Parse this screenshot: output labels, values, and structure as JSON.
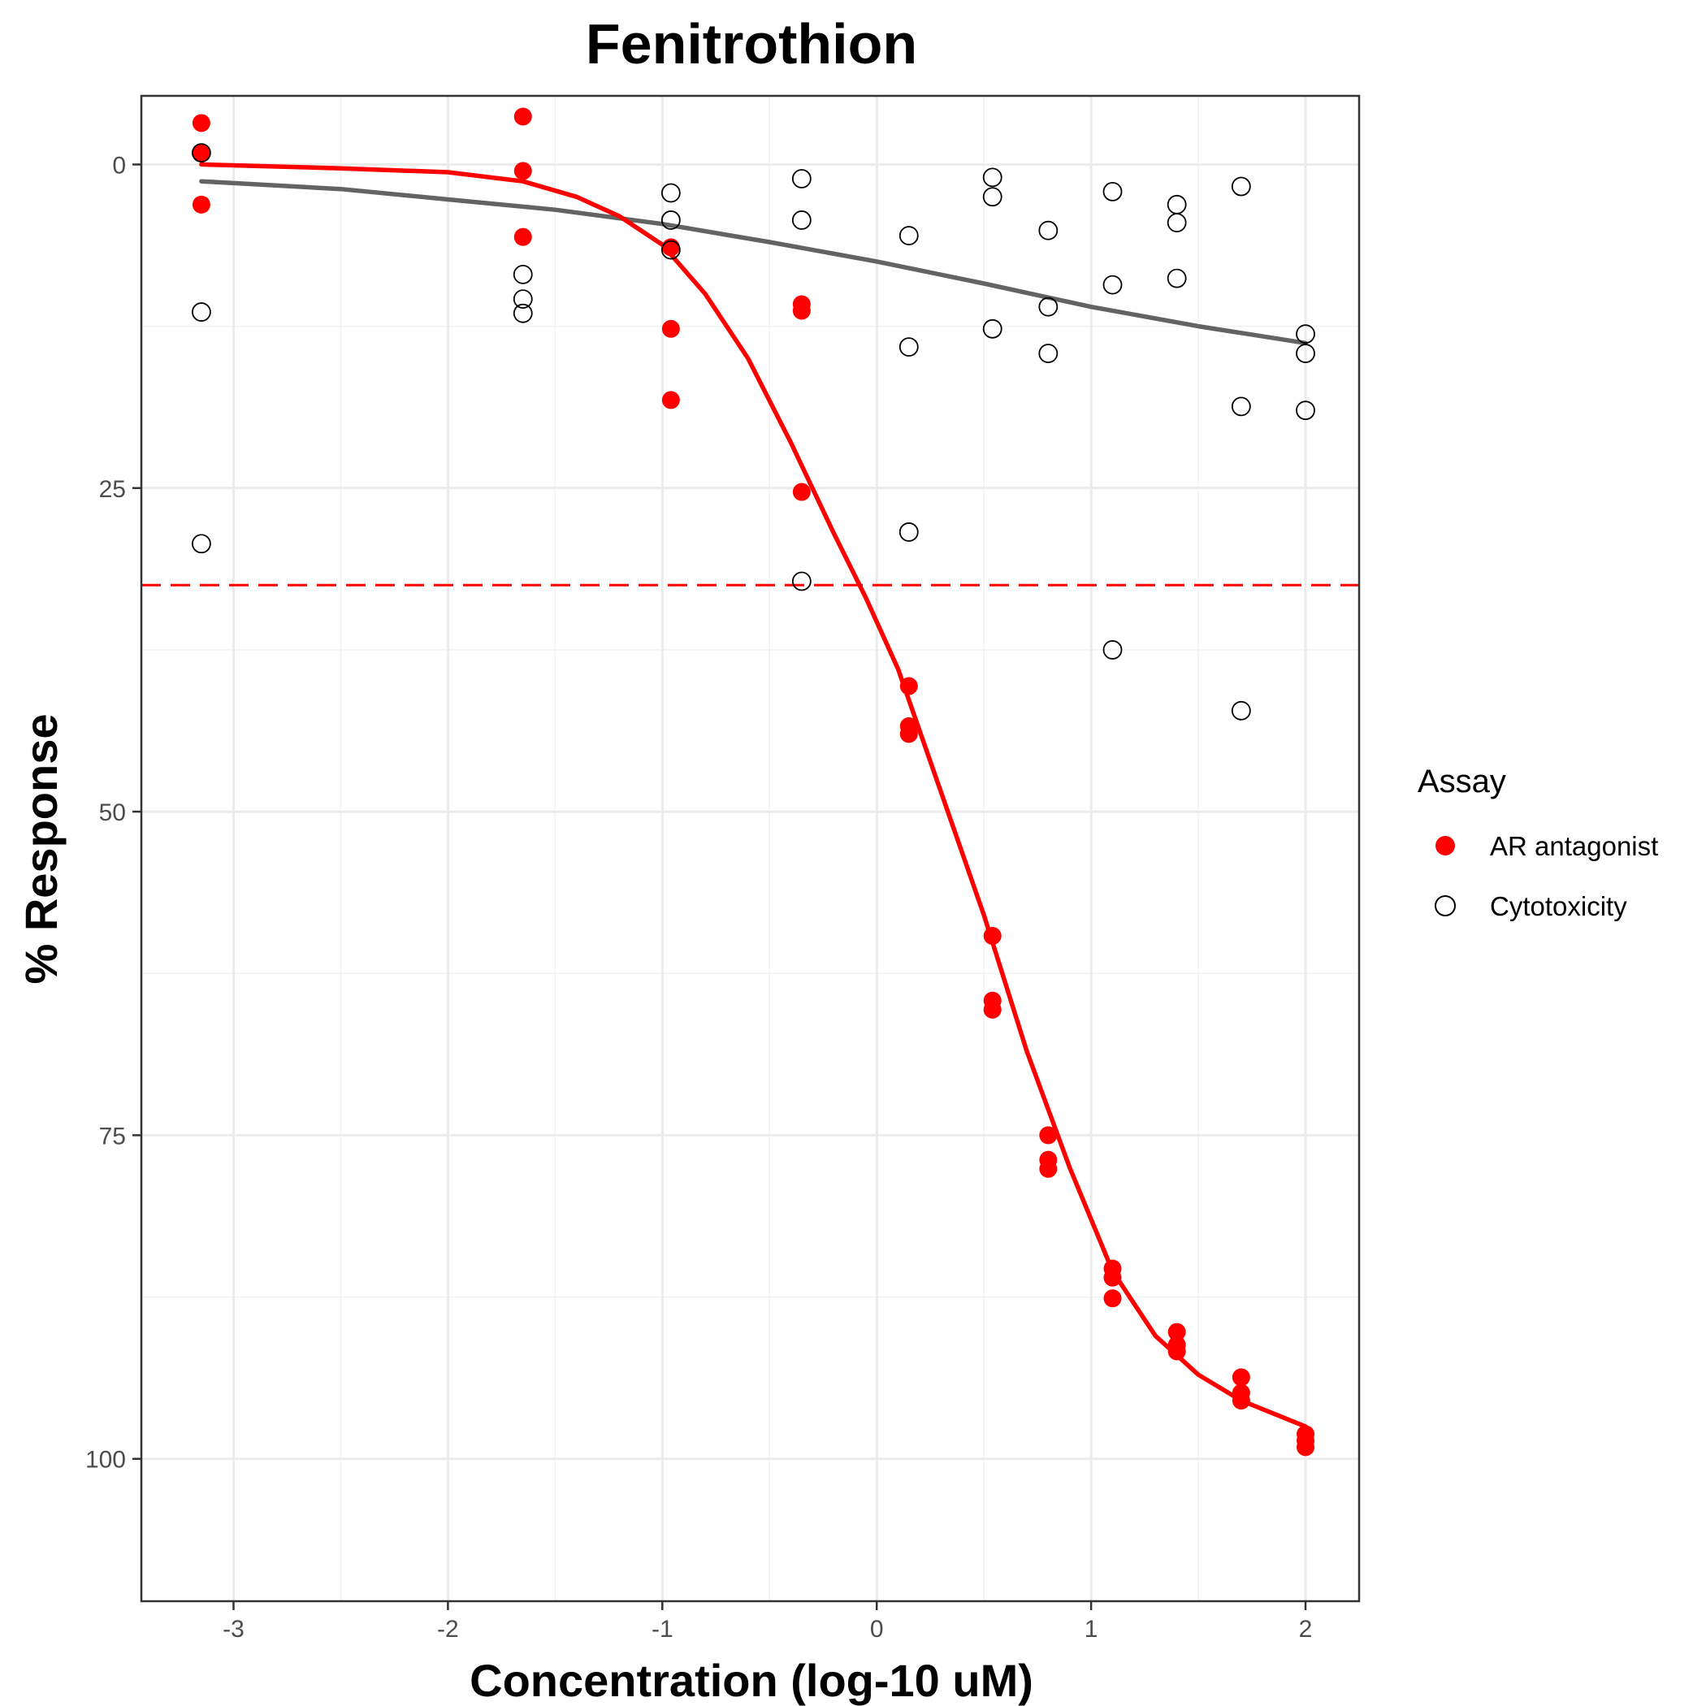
{
  "chart_data": {
    "type": "scatter",
    "title": "Fenitrothion",
    "xlabel": "Concentration (log-10 uM)",
    "ylabel": "% Response",
    "xlim": [
      -3.43,
      2.25
    ],
    "ylim": [
      111,
      -5.3
    ],
    "y_reversed": true,
    "x_ticks": [
      -3,
      -2,
      -1,
      0,
      1,
      2
    ],
    "y_ticks": [
      0,
      25,
      50,
      75,
      100
    ],
    "grid": true,
    "threshold_line": {
      "y": 32.5,
      "color": "#ff0000",
      "style": "dashed"
    },
    "legend": {
      "title": "Assay",
      "position": "right"
    },
    "series": [
      {
        "name": "AR antagonist",
        "color": "#ff0000",
        "marker": "filled-circle",
        "points": [
          [
            -3.15,
            -3.2
          ],
          [
            -3.15,
            -0.9
          ],
          [
            -3.15,
            3.1
          ],
          [
            -1.65,
            -3.7
          ],
          [
            -1.65,
            0.5
          ],
          [
            -1.65,
            5.6
          ],
          [
            -0.96,
            6.4
          ],
          [
            -0.96,
            12.7
          ],
          [
            -0.96,
            18.2
          ],
          [
            -0.35,
            10.8
          ],
          [
            -0.35,
            11.3
          ],
          [
            -0.35,
            25.3
          ],
          [
            0.15,
            40.3
          ],
          [
            0.15,
            43.4
          ],
          [
            0.15,
            44.0
          ],
          [
            0.54,
            59.6
          ],
          [
            0.54,
            64.6
          ],
          [
            0.54,
            65.3
          ],
          [
            0.8,
            75.0
          ],
          [
            0.8,
            76.9
          ],
          [
            0.8,
            77.6
          ],
          [
            1.1,
            85.3
          ],
          [
            1.1,
            86.0
          ],
          [
            1.1,
            87.6
          ],
          [
            1.4,
            90.2
          ],
          [
            1.4,
            91.2
          ],
          [
            1.4,
            91.7
          ],
          [
            1.7,
            93.7
          ],
          [
            1.7,
            94.9
          ],
          [
            1.7,
            95.5
          ],
          [
            2.0,
            98.1
          ],
          [
            2.0,
            98.6
          ],
          [
            2.0,
            99.1
          ]
        ],
        "fit": [
          [
            -3.15,
            0.0
          ],
          [
            -2.5,
            0.3
          ],
          [
            -2.0,
            0.6
          ],
          [
            -1.65,
            1.3
          ],
          [
            -1.4,
            2.5
          ],
          [
            -1.2,
            4.0
          ],
          [
            -1.0,
            6.2
          ],
          [
            -0.8,
            10.0
          ],
          [
            -0.6,
            15.0
          ],
          [
            -0.4,
            21.5
          ],
          [
            -0.2,
            28.5
          ],
          [
            -0.05,
            33.5
          ],
          [
            0.1,
            39.0
          ],
          [
            0.3,
            48.5
          ],
          [
            0.5,
            58.0
          ],
          [
            0.7,
            68.5
          ],
          [
            0.9,
            77.5
          ],
          [
            1.1,
            85.5
          ],
          [
            1.3,
            90.5
          ],
          [
            1.5,
            93.5
          ],
          [
            1.7,
            95.5
          ],
          [
            2.0,
            97.5
          ]
        ]
      },
      {
        "name": "Cytotoxicity",
        "color": "#000000",
        "marker": "open-circle",
        "points": [
          [
            -3.15,
            -0.9
          ],
          [
            -3.15,
            11.4
          ],
          [
            -3.15,
            29.3
          ],
          [
            -1.65,
            8.5
          ],
          [
            -1.65,
            10.4
          ],
          [
            -1.65,
            11.5
          ],
          [
            -0.96,
            2.2
          ],
          [
            -0.96,
            4.3
          ],
          [
            -0.96,
            6.6
          ],
          [
            -0.35,
            1.1
          ],
          [
            -0.35,
            4.3
          ],
          [
            -0.35,
            32.2
          ],
          [
            0.15,
            5.5
          ],
          [
            0.15,
            14.1
          ],
          [
            0.15,
            28.4
          ],
          [
            0.54,
            1.0
          ],
          [
            0.54,
            2.5
          ],
          [
            0.54,
            12.7
          ],
          [
            0.8,
            5.1
          ],
          [
            0.8,
            11.0
          ],
          [
            0.8,
            14.6
          ],
          [
            1.1,
            2.1
          ],
          [
            1.1,
            9.3
          ],
          [
            1.1,
            37.5
          ],
          [
            1.4,
            3.1
          ],
          [
            1.4,
            4.5
          ],
          [
            1.4,
            8.8
          ],
          [
            1.7,
            1.7
          ],
          [
            1.7,
            18.7
          ],
          [
            1.7,
            42.2
          ],
          [
            2.0,
            13.1
          ],
          [
            2.0,
            14.6
          ],
          [
            2.0,
            19.0
          ]
        ],
        "fit": [
          [
            -3.15,
            1.3
          ],
          [
            -2.5,
            1.9
          ],
          [
            -2.0,
            2.7
          ],
          [
            -1.5,
            3.5
          ],
          [
            -1.0,
            4.6
          ],
          [
            -0.5,
            6.0
          ],
          [
            0.0,
            7.5
          ],
          [
            0.5,
            9.2
          ],
          [
            1.0,
            11.0
          ],
          [
            1.5,
            12.5
          ],
          [
            2.0,
            13.8
          ]
        ],
        "fit_color": "#636363"
      }
    ]
  }
}
